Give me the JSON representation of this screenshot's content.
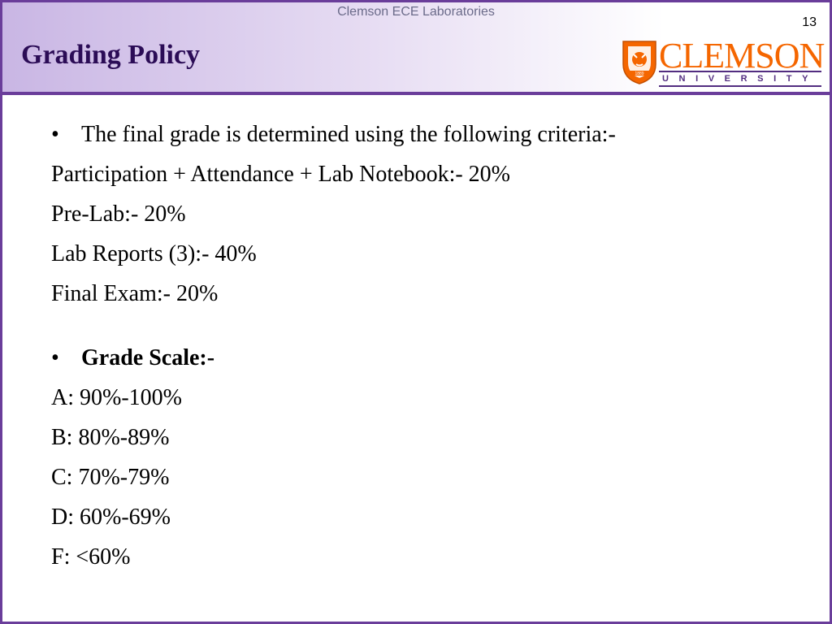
{
  "header": {
    "lab_name": "Clemson ECE Laboratories",
    "page_number": "13",
    "title": "Grading Policy"
  },
  "logo": {
    "wordmark": "CLEMSON",
    "subtext": "UNIVERSITY",
    "crest_year": "1889",
    "colors": {
      "orange": "#f56600",
      "purple": "#522d80"
    }
  },
  "criteria": {
    "bullet": "The final grade is determined using the following criteria:-",
    "items": [
      "Participation + Attendance + Lab Notebook:- 20%",
      "Pre-Lab:- 20%",
      "Lab Reports (3):- 40%",
      "Final Exam:- 20%"
    ]
  },
  "scale": {
    "bullet": "Grade Scale:-",
    "items": [
      "A: 90%-100%",
      "B: 80%-89%",
      "C: 70%-79%",
      "D: 60%-69%",
      "F: <60%"
    ]
  },
  "theme": {
    "accent": "#6a3d9a",
    "title_color": "#2b0c56"
  }
}
